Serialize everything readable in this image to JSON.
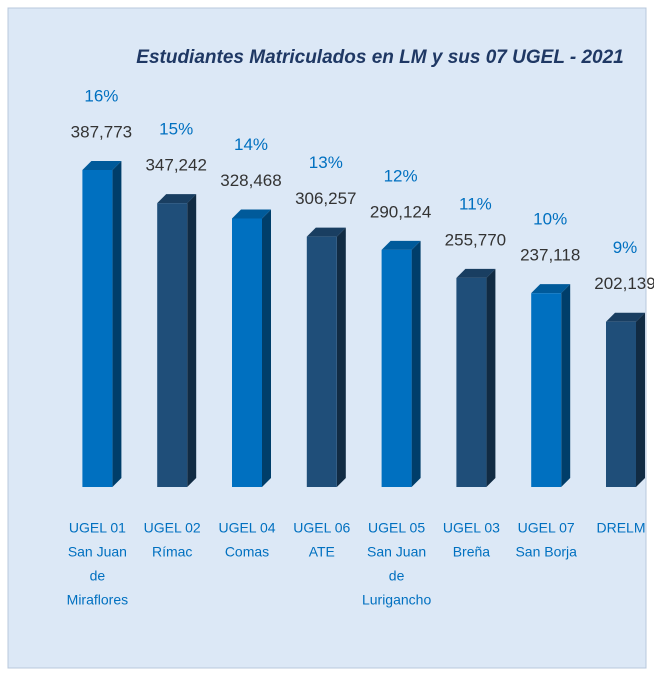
{
  "chart_data": {
    "type": "bar3d",
    "title": "Estudiantes Matriculados  en LM y sus 07 UGEL - 2021",
    "categories": [
      [
        "UGEL 01",
        "San Juan",
        "de",
        "Miraflores"
      ],
      [
        "UGEL 02",
        "Rímac"
      ],
      [
        "UGEL 04",
        "Comas"
      ],
      [
        "UGEL 06",
        "ATE"
      ],
      [
        "UGEL 05",
        "San Juan",
        "de",
        "Lurigancho"
      ],
      [
        "UGEL 03",
        "Breña"
      ],
      [
        "UGEL 07",
        "San Borja"
      ],
      [
        "DRELM"
      ]
    ],
    "values": [
      387773,
      347242,
      328468,
      306257,
      290124,
      255770,
      237118,
      202139
    ],
    "value_labels": [
      "387,773",
      "347,242",
      "328,468",
      "306,257",
      "290,124",
      "255,770",
      "237,118",
      "202,139"
    ],
    "share_labels": [
      "16%",
      "15%",
      "14%",
      "13%",
      "12%",
      "11%",
      "10%",
      "9%"
    ],
    "colors": [
      "#0070c0",
      "#1f4e79",
      "#0070c0",
      "#1f4e79",
      "#0070c0",
      "#1f4e79",
      "#0070c0",
      "#1f4e79"
    ]
  }
}
